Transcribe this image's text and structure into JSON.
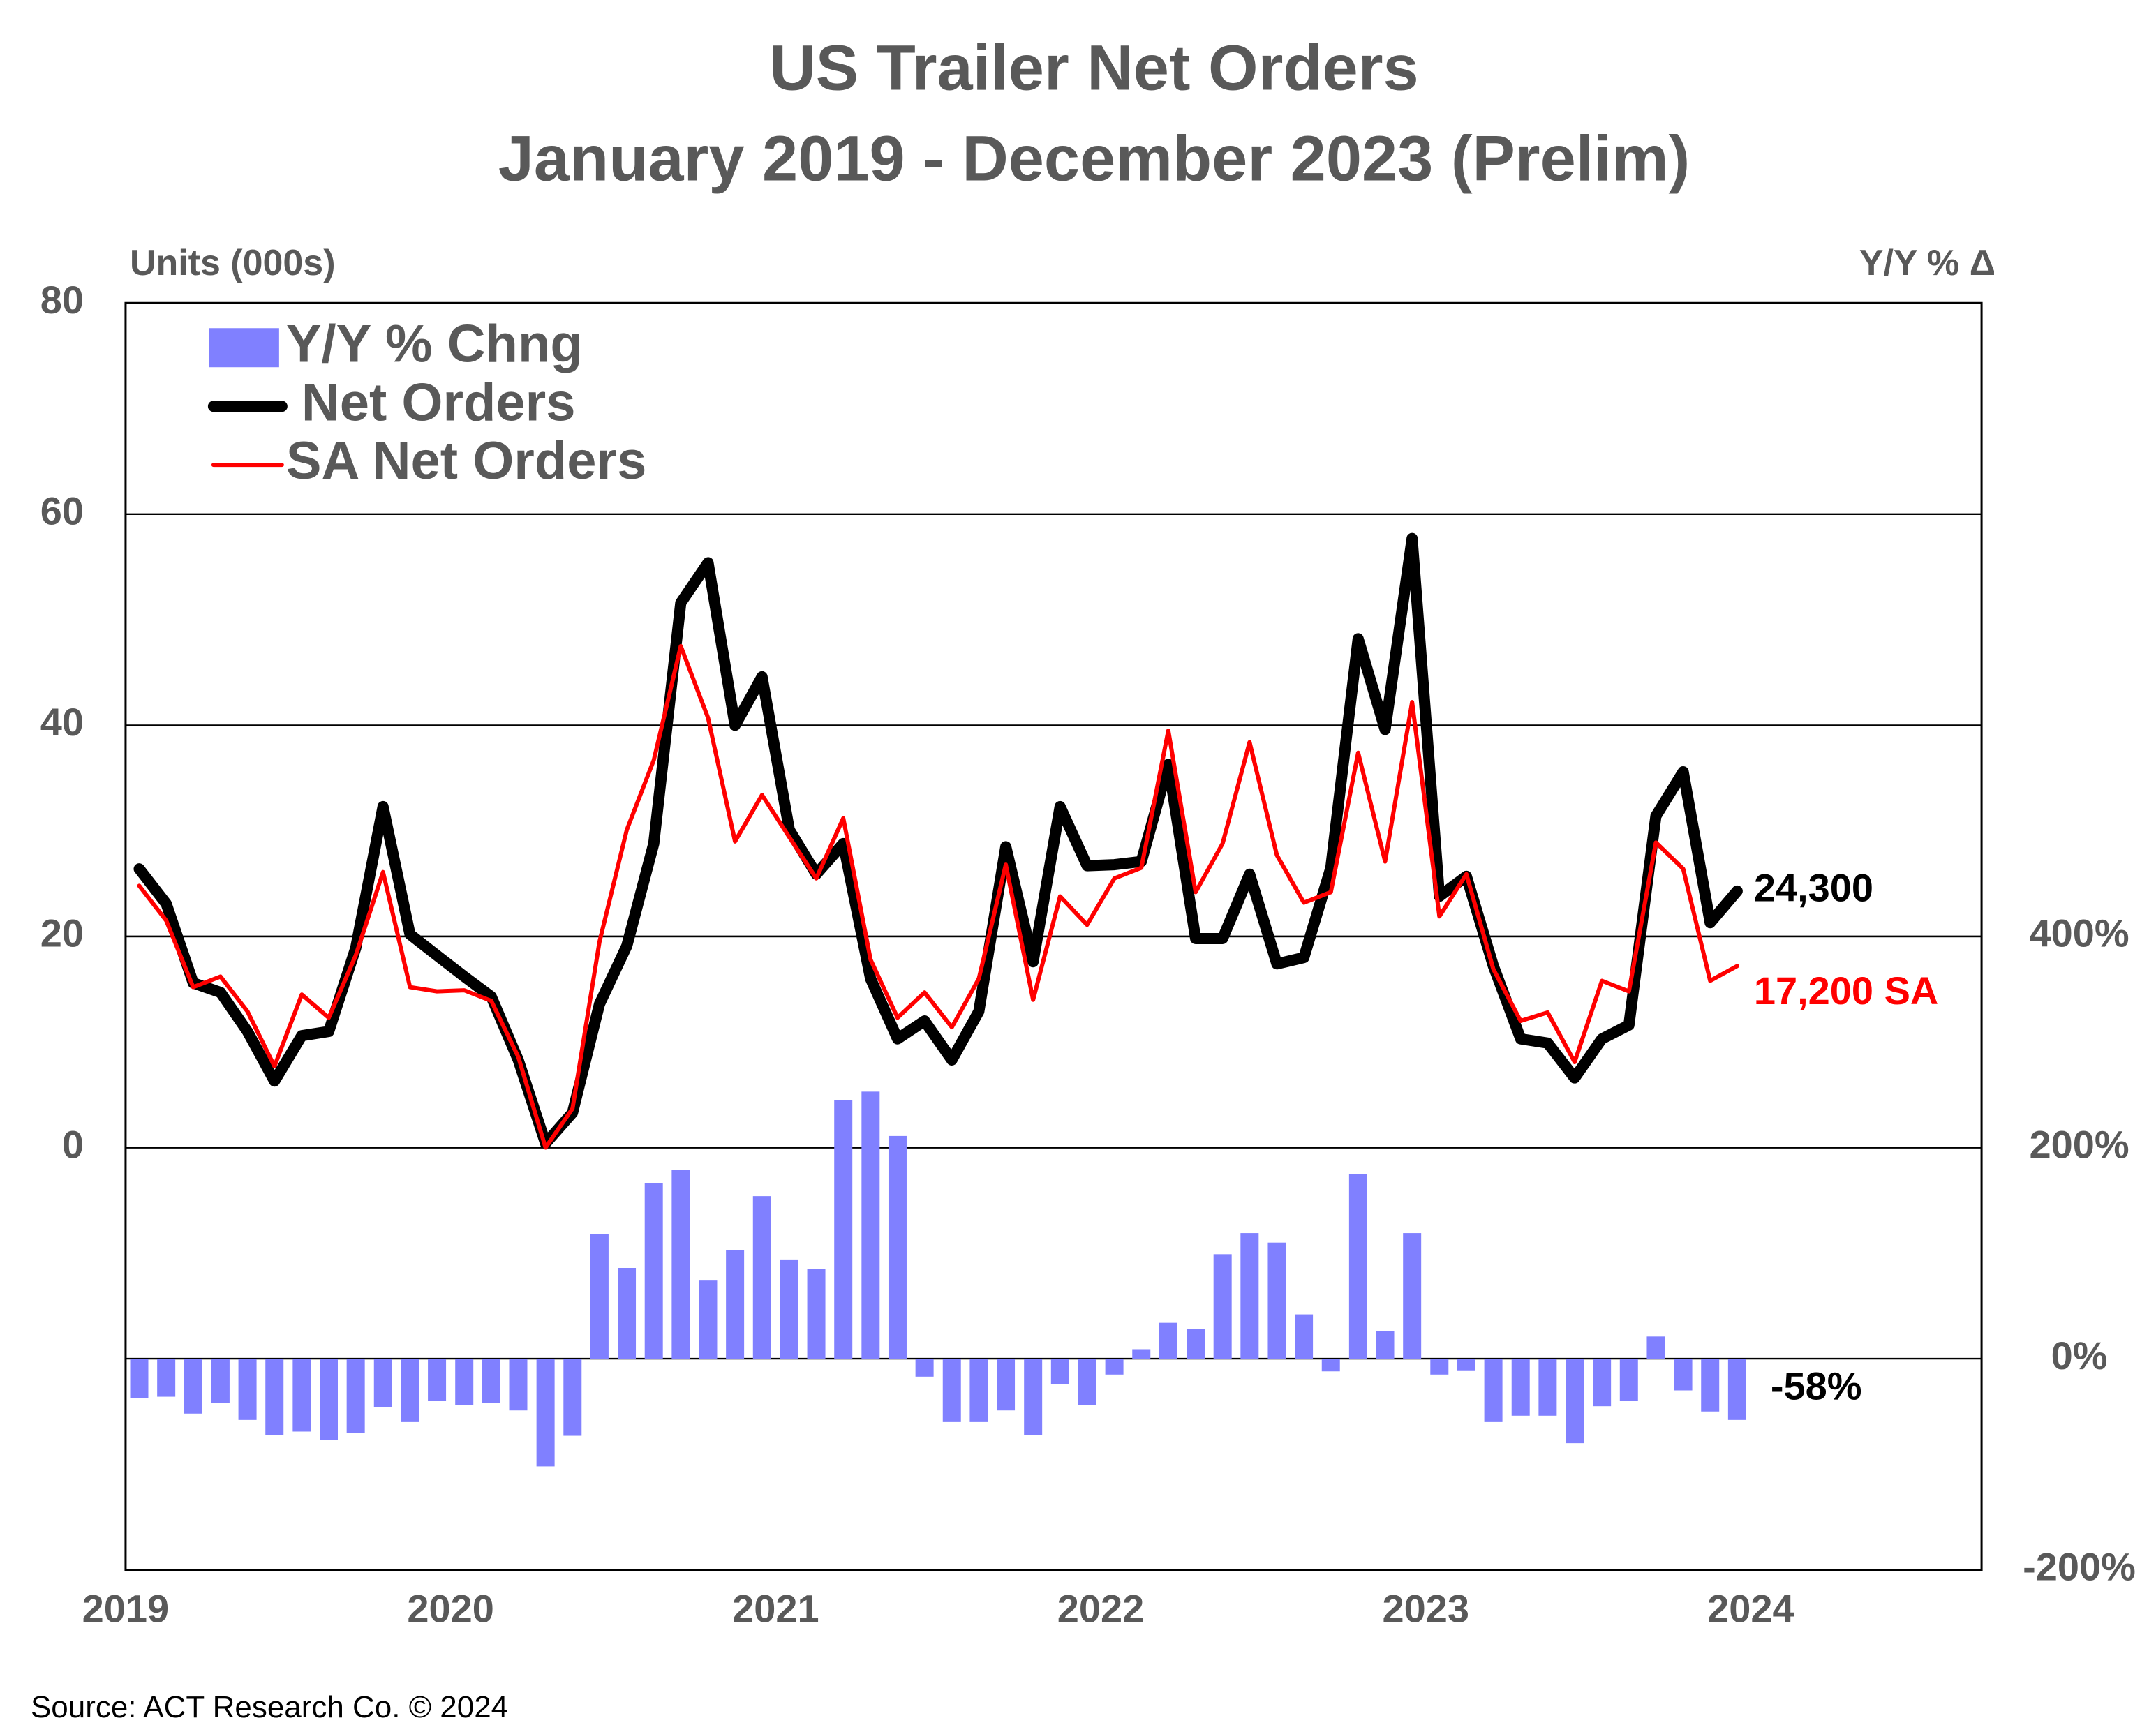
{
  "chart_data": {
    "type": "combo",
    "title": "US Trailer Net Orders",
    "subtitle": "January 2019 - December 2023 (Prelim)",
    "y_label": "Units (000s)",
    "y2_label": "Y/Y % Δ",
    "source": "Source: ACT Research Co. © 2024",
    "x": [
      2019.042,
      2019.125,
      2019.208,
      2019.292,
      2019.375,
      2019.458,
      2019.542,
      2019.625,
      2019.708,
      2019.792,
      2019.875,
      2019.958,
      2020.042,
      2020.125,
      2020.208,
      2020.292,
      2020.375,
      2020.458,
      2020.542,
      2020.625,
      2020.708,
      2020.792,
      2020.875,
      2020.958,
      2021.042,
      2021.125,
      2021.208,
      2021.292,
      2021.375,
      2021.458,
      2021.542,
      2021.625,
      2021.708,
      2021.792,
      2021.875,
      2021.958,
      2022.042,
      2022.125,
      2022.208,
      2022.292,
      2022.375,
      2022.458,
      2022.542,
      2022.625,
      2022.708,
      2022.792,
      2022.875,
      2022.958,
      2023.042,
      2023.125,
      2023.208,
      2023.292,
      2023.375,
      2023.458,
      2023.542,
      2023.625,
      2023.708,
      2023.792,
      2023.875,
      2023.958
    ],
    "xlim": [
      2019,
      2024.71
    ],
    "xticks": [
      2019,
      2020,
      2021,
      2022,
      2023,
      2024
    ],
    "ylim": [
      -40,
      80
    ],
    "yticks": [
      0,
      20,
      40,
      60,
      80
    ],
    "y2lim": [
      -200,
      1000
    ],
    "y2ticks": [
      {
        "value": -200,
        "label": "-200%"
      },
      {
        "value": 0,
        "label": "0%"
      },
      {
        "value": 200,
        "label": "200%"
      },
      {
        "value": 400,
        "label": "400%"
      }
    ],
    "grid": true,
    "legend": "upper left",
    "series": [
      {
        "name": "Y/Y % Chng",
        "type": "bar",
        "axis": "y2",
        "color": "#8080ff",
        "end_label": "-58%",
        "end_label_color": "#000000",
        "values": [
          -37,
          -36,
          -52,
          -42,
          -58,
          -72,
          -69,
          -77,
          -70,
          -46,
          -60,
          -40,
          -44,
          -42,
          -49,
          -102,
          -73,
          118,
          86,
          166,
          179,
          74,
          103,
          154,
          94,
          85,
          245,
          253,
          211,
          -17,
          -60,
          -60,
          -49,
          -72,
          -24,
          -44,
          -15,
          9,
          34,
          28,
          99,
          119,
          110,
          42,
          -12,
          175,
          26,
          119,
          -15,
          -11,
          -60,
          -54,
          -54,
          -80,
          -45,
          -40,
          21,
          -30,
          -50,
          -58
        ]
      },
      {
        "name": "Net Orders",
        "type": "line",
        "color": "#000000",
        "line_width": 8,
        "end_label": "24,300",
        "end_label_color": "#000000",
        "values": [
          26.4,
          23.1,
          15.6,
          14.7,
          11.0,
          6.3,
          10.6,
          11.0,
          18.9,
          32.3,
          20.2,
          18.2,
          16.2,
          14.3,
          8.3,
          0.4,
          3.3,
          13.6,
          19.1,
          28.8,
          51.6,
          55.4,
          40.0,
          44.6,
          30.1,
          25.9,
          28.8,
          16.0,
          10.3,
          12.0,
          8.3,
          12.9,
          28.5,
          17.6,
          32.3,
          26.7,
          26.8,
          27.1,
          36.3,
          19.8,
          19.8,
          25.9,
          17.4,
          18.0,
          26.5,
          48.2,
          39.6,
          57.7,
          23.8,
          25.7,
          17.2,
          10.3,
          9.9,
          6.6,
          10.3,
          11.6,
          31.4,
          35.6,
          21.3,
          24.3
        ]
      },
      {
        "name": "SA Net Orders",
        "type": "line",
        "color": "#ff0000",
        "line_width": 3,
        "end_label": "17,200 SA",
        "end_label_color": "#ff0000",
        "values": [
          24.8,
          21.5,
          15.2,
          16.2,
          12.9,
          7.7,
          14.5,
          12.3,
          18.2,
          26.1,
          15.2,
          14.8,
          14.9,
          13.9,
          8.6,
          0.0,
          3.7,
          19.5,
          30.1,
          36.7,
          47.5,
          40.7,
          29.0,
          33.4,
          29.4,
          25.5,
          31.2,
          17.8,
          12.3,
          14.7,
          11.4,
          16.0,
          26.8,
          14.0,
          23.8,
          21.1,
          25.5,
          26.5,
          39.5,
          24.2,
          28.8,
          38.4,
          27.7,
          23.2,
          24.2,
          37.4,
          27.1,
          42.2,
          21.9,
          25.9,
          16.9,
          12.0,
          12.8,
          8.1,
          15.8,
          14.8,
          28.9,
          26.4,
          15.8,
          17.2
        ]
      }
    ]
  }
}
